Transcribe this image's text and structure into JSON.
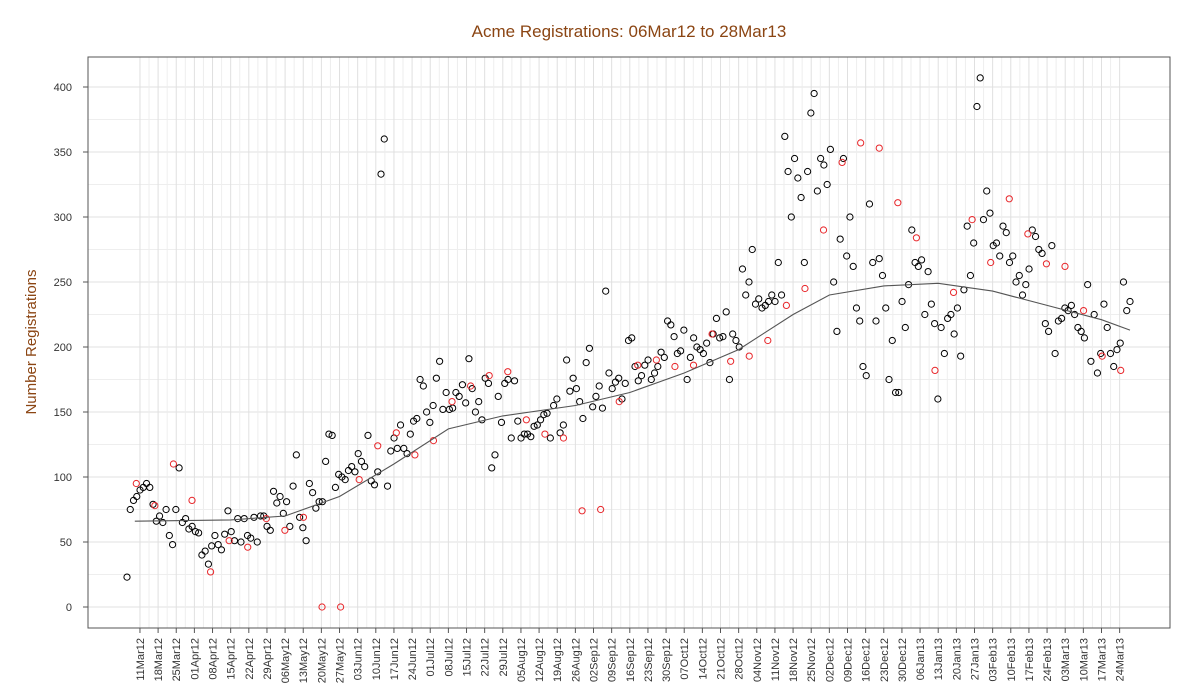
{
  "chart_data": {
    "type": "scatter",
    "title": "Acme Registrations: 06Mar12 to 28Mar13",
    "xlabel": "",
    "ylabel": "Number Registrations",
    "x_range": [
      "2012-03-06",
      "2013-03-28"
    ],
    "ylim": [
      -15,
      420
    ],
    "y_ticks": [
      0,
      50,
      100,
      150,
      200,
      250,
      300,
      350,
      400
    ],
    "x_ticks": [
      "11Mar12",
      "18Mar12",
      "25Mar12",
      "01Apr12",
      "08Apr12",
      "15Apr12",
      "22Apr12",
      "29Apr12",
      "06May12",
      "13May12",
      "20May12",
      "27May12",
      "03Jun12",
      "10Jun12",
      "17Jun12",
      "24Jun12",
      "01Jul12",
      "08Jul12",
      "15Jul12",
      "22Jul12",
      "29Jul12",
      "05Aug12",
      "12Aug12",
      "19Aug12",
      "26Aug12",
      "02Sep12",
      "09Sep12",
      "16Sep12",
      "23Sep12",
      "30Sep12",
      "07Oct12",
      "14Oct12",
      "21Oct12",
      "28Oct12",
      "04Nov12",
      "11Nov12",
      "18Nov12",
      "25Nov12",
      "02Dec12",
      "09Dec12",
      "16Dec12",
      "23Dec12",
      "30Dec12",
      "06Jan13",
      "13Jan13",
      "20Jan13",
      "27Jan13",
      "03Feb13",
      "10Feb13",
      "17Feb13",
      "24Feb13",
      "03Mar13",
      "10Mar13",
      "17Mar13",
      "24Mar13"
    ],
    "grid": true,
    "colors": {
      "title": "#8B4513",
      "ylabel": "#8B4513",
      "weekday_point": "#000000",
      "highlight_point": "#E8262A",
      "trend": "#555555",
      "grid": "#E0E0E0",
      "frame": "#555555"
    },
    "series": [
      {
        "marker": "open-circle-black",
        "values": [
          23,
          75,
          82,
          85,
          90,
          92,
          95,
          92,
          79,
          66,
          70,
          65,
          75,
          55,
          48,
          75,
          107,
          65,
          68,
          60,
          62,
          58,
          57,
          40,
          43,
          33,
          47,
          55,
          48,
          44,
          56,
          74,
          58,
          51,
          68,
          50,
          68,
          55,
          53,
          69,
          50,
          70,
          70,
          62,
          59,
          89,
          80,
          85,
          72,
          81,
          62,
          93,
          117,
          69,
          61,
          51,
          95,
          88,
          76,
          81,
          81,
          112,
          133,
          132,
          92,
          102,
          100,
          98,
          105,
          108,
          104,
          118,
          112,
          108,
          132,
          97,
          94,
          104,
          333,
          360,
          93,
          120,
          130,
          122,
          140,
          122,
          118,
          133,
          143,
          145,
          175,
          170,
          150,
          142,
          155,
          176,
          189,
          152,
          165,
          152,
          153,
          165,
          162,
          171,
          157,
          191,
          168,
          150,
          158,
          144,
          176,
          172,
          107,
          117,
          162,
          142,
          172,
          175,
          130,
          174,
          143,
          130,
          133,
          133,
          131,
          139,
          140,
          144,
          148,
          149,
          130,
          155,
          160,
          134,
          140,
          190,
          166,
          176,
          168,
          158,
          145,
          188,
          199,
          154,
          162,
          170,
          153,
          243,
          180,
          168,
          173,
          176,
          160,
          172,
          205,
          207,
          185,
          174,
          178,
          186,
          190,
          175,
          180,
          185,
          196,
          192,
          220,
          217,
          208,
          195,
          197,
          213,
          175,
          192,
          207,
          200,
          198,
          195,
          203,
          188,
          210,
          222,
          207,
          208,
          227,
          175,
          210,
          205,
          200,
          260,
          240,
          250,
          275,
          233,
          237,
          230,
          232,
          235,
          240,
          235,
          265,
          240,
          362,
          335,
          300,
          345,
          330,
          315,
          265,
          335,
          380,
          395,
          320,
          345,
          340,
          325,
          352,
          250,
          212,
          283,
          345,
          270,
          300,
          262,
          230,
          220,
          185,
          178,
          310,
          265,
          220,
          268,
          255,
          230,
          175,
          205,
          165,
          165,
          235,
          215,
          248,
          290,
          265,
          262,
          267,
          225,
          258,
          233,
          218,
          160,
          215,
          195,
          222,
          225,
          210,
          230,
          193,
          244,
          293,
          255,
          280,
          385,
          407,
          298,
          320,
          303,
          278,
          280,
          270,
          293,
          288,
          265,
          270,
          250,
          255,
          240,
          248,
          260,
          290,
          285,
          275,
          272,
          218,
          212,
          278,
          195,
          220,
          222,
          230,
          228,
          232,
          225,
          215,
          212,
          207,
          248,
          189,
          225,
          180,
          195,
          233,
          215,
          195,
          185,
          198,
          203,
          250,
          228,
          235
        ]
      },
      {
        "marker": "open-circle-red",
        "values": [
          95,
          78,
          110,
          82,
          27,
          51,
          46,
          68,
          59,
          69,
          0,
          0,
          98,
          124,
          134,
          117,
          128,
          158,
          170,
          178,
          181,
          144,
          133,
          130,
          74,
          75,
          158,
          186,
          190,
          185,
          186,
          210,
          189,
          193,
          205,
          232,
          245,
          290,
          342,
          357,
          353,
          311,
          284,
          182,
          242,
          298,
          265,
          314,
          287,
          264,
          262,
          228,
          193,
          182
        ]
      }
    ],
    "trend_line": [
      {
        "x": "2012-03-09",
        "y": 66
      },
      {
        "x": "2012-04-15",
        "y": 67
      },
      {
        "x": "2012-05-06",
        "y": 70
      },
      {
        "x": "2012-05-27",
        "y": 85
      },
      {
        "x": "2012-06-17",
        "y": 110
      },
      {
        "x": "2012-07-08",
        "y": 137
      },
      {
        "x": "2012-07-29",
        "y": 147
      },
      {
        "x": "2012-08-26",
        "y": 155
      },
      {
        "x": "2012-09-16",
        "y": 165
      },
      {
        "x": "2012-10-07",
        "y": 180
      },
      {
        "x": "2012-10-28",
        "y": 198
      },
      {
        "x": "2012-11-18",
        "y": 225
      },
      {
        "x": "2012-12-02",
        "y": 240
      },
      {
        "x": "2012-12-23",
        "y": 247
      },
      {
        "x": "2013-01-13",
        "y": 249
      },
      {
        "x": "2013-02-03",
        "y": 243
      },
      {
        "x": "2013-02-24",
        "y": 232
      },
      {
        "x": "2013-03-17",
        "y": 221
      },
      {
        "x": "2013-03-28",
        "y": 213
      }
    ]
  }
}
